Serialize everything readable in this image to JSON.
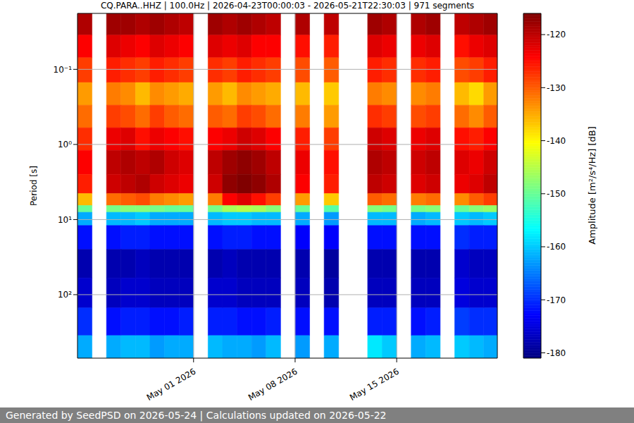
{
  "chart_data": {
    "type": "heatmap",
    "title": "CQ.PARA..HHZ | 100.0Hz | 2026-04-23T00:00:03 - 2026-05-21T22:30:03 | 971 segments",
    "y_label": "Period [s]",
    "log": "y",
    "grid": true,
    "xlim": [
      "2026-04-23T00:00:03",
      "2026-05-21T22:30:03"
    ],
    "xticks": [
      {
        "value": "2026-05-01",
        "label": "May 01 2026"
      },
      {
        "value": "2026-05-08",
        "label": "May 08 2026"
      },
      {
        "value": "2026-05-15",
        "label": "May 15 2026"
      }
    ],
    "ylim": [
      0.018,
      700
    ],
    "yticks": [
      {
        "value": 0.1,
        "label": "10⁻¹"
      },
      {
        "value": 1,
        "label": "10⁰"
      },
      {
        "value": 10,
        "label": "10¹"
      },
      {
        "value": 100,
        "label": "10²"
      }
    ],
    "x_bins": [
      "2026-04-23T00:00:03",
      "2026-04-24",
      "2026-04-25",
      "2026-04-26",
      "2026-04-27",
      "2026-04-28",
      "2026-04-29",
      "2026-04-30",
      "2026-05-01",
      "2026-05-02",
      "2026-05-03",
      "2026-05-04",
      "2026-05-05",
      "2026-05-06",
      "2026-05-07",
      "2026-05-08",
      "2026-05-09",
      "2026-05-10",
      "2026-05-11",
      "2026-05-12",
      "2026-05-13",
      "2026-05-14",
      "2026-05-15",
      "2026-05-16",
      "2026-05-17",
      "2026-05-18",
      "2026-05-19",
      "2026-05-20",
      "2026-05-21",
      "2026-05-21T22:30:03"
    ],
    "y_bins": [
      0.018,
      0.035,
      0.07,
      0.15,
      0.3,
      0.6,
      1.2,
      2.5,
      4.5,
      6.5,
      8,
      12,
      25,
      60,
      150,
      350,
      700
    ],
    "cells": [
      [
        -119,
        null,
        -118,
        -118,
        -119,
        -118,
        -119,
        -120,
        null,
        -118,
        -119,
        -118,
        -119,
        -120,
        null,
        -119,
        null,
        -120,
        null,
        null,
        -118,
        -119,
        null,
        -119,
        -118,
        null,
        -120,
        -119,
        -118
      ],
      [
        -124,
        null,
        -122,
        -123,
        -124,
        -122,
        -123,
        -124,
        null,
        -122,
        -123,
        -122,
        -124,
        -124,
        null,
        -125,
        null,
        -126,
        null,
        null,
        -122,
        -123,
        null,
        -123,
        -122,
        null,
        -125,
        -123,
        -122
      ],
      [
        -128,
        null,
        -126,
        -127,
        -128,
        -126,
        -127,
        -128,
        null,
        -127,
        -128,
        -126,
        -127,
        -128,
        null,
        -129,
        null,
        -130,
        null,
        null,
        -126,
        -127,
        null,
        -127,
        -126,
        null,
        -129,
        -128,
        -126
      ],
      [
        -134,
        null,
        -132,
        -133,
        -136,
        -133,
        -134,
        -135,
        null,
        -134,
        -136,
        -133,
        -134,
        -135,
        null,
        -136,
        null,
        -137,
        null,
        null,
        -132,
        -133,
        null,
        -133,
        -132,
        null,
        -136,
        -138,
        -134
      ],
      [
        -131,
        null,
        -128,
        -129,
        -131,
        -128,
        -130,
        -131,
        null,
        -130,
        -131,
        -128,
        -129,
        -131,
        null,
        -132,
        null,
        -134,
        null,
        null,
        -127,
        -128,
        null,
        -129,
        -128,
        null,
        -131,
        -133,
        -130
      ],
      [
        -127,
        null,
        -123,
        -122,
        -125,
        -123,
        -124,
        -125,
        null,
        -124,
        -123,
        -121,
        -122,
        -124,
        null,
        -126,
        null,
        -128,
        null,
        null,
        -121,
        -122,
        null,
        -123,
        -122,
        null,
        -125,
        -126,
        -124
      ],
      [
        -124,
        null,
        -120,
        -119,
        -120,
        -119,
        -121,
        -122,
        null,
        -120,
        -118,
        -117,
        -118,
        -120,
        null,
        -123,
        null,
        -125,
        null,
        null,
        -119,
        -120,
        null,
        -121,
        -120,
        null,
        -122,
        -123,
        -121
      ],
      [
        -126,
        null,
        -121,
        -120,
        -119,
        -121,
        -122,
        -123,
        null,
        -121,
        -117,
        -116,
        -117,
        -119,
        null,
        -124,
        null,
        -126,
        null,
        null,
        -120,
        -121,
        null,
        -122,
        -121,
        null,
        -123,
        -122,
        -120
      ],
      [
        -136,
        null,
        -131,
        -130,
        -129,
        -132,
        -133,
        -134,
        null,
        -132,
        -124,
        -122,
        -125,
        -128,
        null,
        -134,
        null,
        -137,
        null,
        null,
        -130,
        -131,
        null,
        -132,
        -131,
        null,
        -133,
        -130,
        -128
      ],
      [
        -150,
        null,
        -149,
        -148,
        -148,
        -149,
        -150,
        -150,
        null,
        -149,
        -146,
        -145,
        -146,
        -148,
        null,
        -150,
        null,
        -151,
        null,
        null,
        -148,
        -149,
        null,
        -149,
        -148,
        null,
        -150,
        -148,
        -147
      ],
      [
        -162,
        null,
        -161,
        -161,
        -160,
        -162,
        -162,
        -162,
        null,
        -161,
        -160,
        -160,
        -161,
        -161,
        null,
        -162,
        null,
        -163,
        null,
        null,
        -161,
        -161,
        null,
        -162,
        -161,
        null,
        -160,
        -161,
        -160
      ],
      [
        -172,
        null,
        -172,
        -171,
        -171,
        -172,
        -172,
        -172,
        null,
        -172,
        -171,
        -171,
        -172,
        -172,
        null,
        -173,
        null,
        -173,
        null,
        null,
        -172,
        -172,
        null,
        -172,
        -172,
        null,
        -170,
        -171,
        -171
      ],
      [
        -178,
        null,
        -178,
        -178,
        -177,
        -178,
        -178,
        -178,
        null,
        -178,
        -177,
        -178,
        -178,
        -178,
        null,
        -178,
        null,
        -179,
        null,
        null,
        -178,
        -178,
        null,
        -178,
        -178,
        null,
        -176,
        -177,
        -177
      ],
      [
        -176,
        null,
        -177,
        -176,
        -176,
        -177,
        -177,
        -177,
        null,
        -176,
        -176,
        -177,
        -177,
        -177,
        null,
        -177,
        null,
        -178,
        null,
        null,
        -177,
        -177,
        null,
        -177,
        -177,
        null,
        -175,
        -176,
        -176
      ],
      [
        -170,
        null,
        -172,
        -171,
        -171,
        -172,
        -172,
        -171,
        null,
        -171,
        -171,
        -172,
        -172,
        -171,
        null,
        -172,
        null,
        -172,
        null,
        null,
        -171,
        -171,
        null,
        -172,
        -171,
        null,
        -169,
        -170,
        -170
      ],
      [
        -162,
        null,
        -162,
        -161,
        -161,
        -163,
        -162,
        -162,
        null,
        -161,
        -162,
        -162,
        -163,
        -161,
        null,
        -163,
        null,
        -162,
        null,
        null,
        -158,
        -160,
        null,
        -162,
        -161,
        null,
        -160,
        -161,
        -162
      ]
    ],
    "colorbar": {
      "label": "Amplitude [m²/s⁴/Hz] [dB]",
      "lim": [
        -181,
        -116
      ],
      "ticks": [
        -180,
        -170,
        -160,
        -150,
        -140,
        -130,
        -120
      ]
    },
    "footer": "Generated by SeedPSD on 2026-05-24 | Calculations updated on 2026-05-22"
  }
}
